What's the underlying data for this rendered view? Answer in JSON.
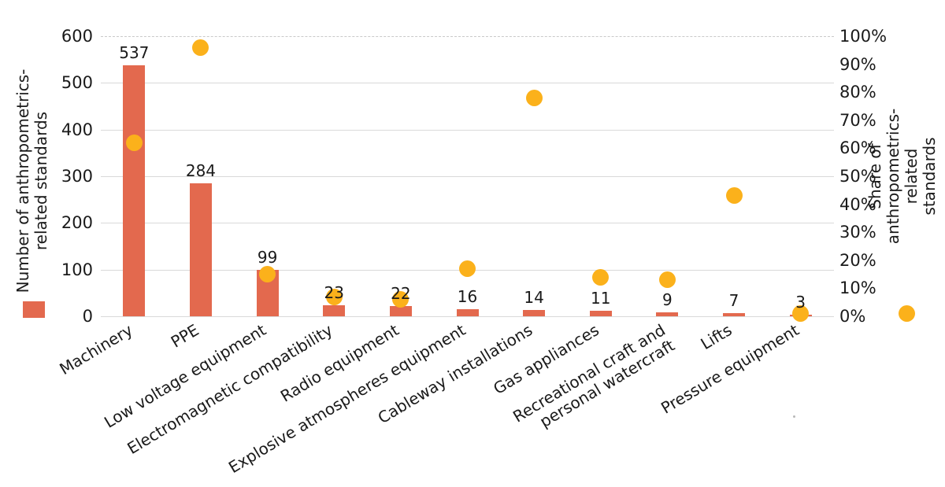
{
  "chart_data": {
    "type": "combo-bar-scatter",
    "categories": [
      "Machinery",
      "PPE",
      "Low voltage equipment",
      "Electromagnetic compatibility",
      "Radio equipment",
      "Explosive atmospheres equipment",
      "Cableway installations",
      "Gas appliances",
      "Recreational craft and\npersonal watercraft",
      "Lifts",
      "Pressure equipment"
    ],
    "series": [
      {
        "name": "Number of anthropometrics-related standards",
        "type": "bar",
        "axis": "left",
        "color": "#E3694E",
        "values": [
          537,
          284,
          99,
          23,
          22,
          16,
          14,
          11,
          9,
          7,
          3
        ],
        "data_labels": [
          "537",
          "284",
          "99",
          "23",
          "22",
          "16",
          "14",
          "11",
          "9",
          "7",
          "3"
        ]
      },
      {
        "name": "Share of anthropometrics-related standards",
        "type": "scatter",
        "axis": "right",
        "color": "#FBB11B",
        "values_percent": [
          62,
          96,
          15,
          7,
          6,
          17,
          78,
          14,
          13,
          43,
          1
        ]
      }
    ],
    "left_axis": {
      "title": "Number of anthropometrics-\nrelated standards",
      "min": 0,
      "max": 600,
      "tick_step": 100,
      "tick_labels": [
        "600",
        "500",
        "400",
        "300",
        "200",
        "100",
        "0"
      ]
    },
    "right_axis": {
      "title": "Share of anthropometrics-\nrelated standards",
      "min": 0,
      "max": 100,
      "tick_step": 10,
      "tick_labels": [
        "100%",
        "90%",
        "80%",
        "70%",
        "60%",
        "50%",
        "40%",
        "30%",
        "20%",
        "10%",
        "0%"
      ]
    },
    "gridlines": {
      "color": "#D9D9D9",
      "orientation": "horizontal",
      "top_line_style": "dashed"
    },
    "legend": "series markers shown beneath each axis title",
    "background": "#FFFFFF",
    "text_color": "#1A1A1A"
  }
}
